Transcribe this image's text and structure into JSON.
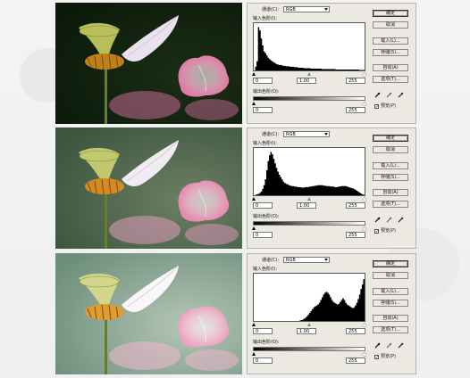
{
  "dialog": {
    "channel_label": "通道(C):",
    "channel_value": "RGB",
    "input_levels_label": "输入色阶(I):",
    "output_levels_label": "输出色阶(O):",
    "buttons": [
      "确定",
      "取消",
      "载入(L)...",
      "存储(S)...",
      "自动(A)",
      "选项(T)..."
    ],
    "preview_label": "预览(P)"
  },
  "panels": [
    {
      "input": {
        "black": "0",
        "gamma": "1.00",
        "white": "255"
      },
      "output": {
        "black": "0",
        "white": "255"
      },
      "histogram": [
        0,
        8,
        20,
        95,
        88,
        70,
        55,
        42,
        38,
        33,
        28,
        25,
        22,
        20,
        18,
        16,
        14,
        13,
        12,
        12,
        11,
        10,
        10,
        9,
        9,
        9,
        8,
        8,
        8,
        7,
        7,
        7,
        6,
        6,
        6,
        6,
        5,
        5,
        5,
        5,
        5,
        4,
        4,
        4,
        4,
        4,
        4,
        4,
        4,
        3,
        3,
        3,
        3,
        3,
        3,
        3,
        3,
        3,
        3,
        2,
        2,
        2,
        2,
        2,
        2,
        2,
        2,
        2,
        2,
        2,
        2,
        2,
        2,
        2,
        2,
        2,
        1,
        1,
        1,
        1
      ]
    },
    {
      "input": {
        "black": "0",
        "gamma": "1.00",
        "white": "255"
      },
      "output": {
        "black": "0",
        "white": "255"
      },
      "histogram": [
        0,
        1,
        2,
        3,
        5,
        8,
        14,
        22,
        35,
        55,
        75,
        88,
        95,
        90,
        80,
        70,
        60,
        52,
        45,
        40,
        35,
        30,
        27,
        25,
        24,
        22,
        21,
        20,
        20,
        19,
        19,
        18,
        18,
        18,
        17,
        17,
        17,
        18,
        18,
        18,
        19,
        19,
        20,
        20,
        21,
        21,
        22,
        22,
        22,
        22,
        21,
        21,
        20,
        20,
        20,
        19,
        19,
        19,
        18,
        18,
        18,
        19,
        19,
        20,
        20,
        20,
        20,
        19,
        18,
        17,
        16,
        15,
        14,
        12,
        10,
        8,
        6,
        4,
        2,
        1
      ]
    },
    {
      "input": {
        "black": "0",
        "gamma": "1.00",
        "white": "255"
      },
      "output": {
        "black": "0",
        "white": "255"
      },
      "histogram": [
        0,
        0,
        0,
        0,
        0,
        0,
        0,
        0,
        0,
        0,
        0,
        0,
        0,
        0,
        0,
        0,
        0,
        0,
        0,
        0,
        0,
        0,
        0,
        0,
        0,
        0,
        0,
        0,
        0,
        0,
        0,
        0,
        0,
        1,
        2,
        3,
        5,
        7,
        10,
        14,
        18,
        22,
        26,
        30,
        32,
        34,
        36,
        40,
        46,
        52,
        58,
        62,
        64,
        62,
        58,
        52,
        46,
        42,
        40,
        38,
        36,
        38,
        42,
        46,
        50,
        46,
        40,
        36,
        34,
        32,
        30,
        28,
        30,
        34,
        40,
        48,
        58,
        70,
        80,
        92
      ]
    }
  ],
  "colors": {
    "dialog_bg": "#ece9e2",
    "histogram_fill": "#000000"
  }
}
